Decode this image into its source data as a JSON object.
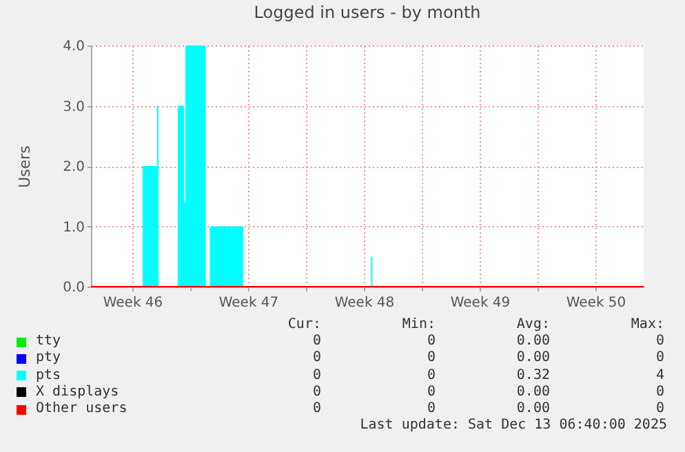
{
  "chart_data": {
    "type": "area",
    "title": "Logged in users - by month",
    "ylabel": "Users",
    "x": [
      "2025-11-11T00:00",
      "2025-11-14T03:00",
      "2025-11-15T00:00",
      "2025-11-15T02:00",
      "2025-11-16T06:00",
      "2025-11-16T15:00",
      "2025-11-16T17:00",
      "2025-11-17T22:30",
      "2025-11-18T04:30",
      "2025-11-20T05:00",
      "2025-11-27T22:30",
      "2025-11-28T00:30",
      "2025-12-14T10:00"
    ],
    "series": [
      {
        "name": "tty",
        "type": "line",
        "color": "#00ee00",
        "values": [
          null,
          null,
          null,
          null,
          null,
          null,
          null,
          null,
          null,
          null,
          null,
          null,
          null
        ]
      },
      {
        "name": "pty",
        "type": "line",
        "color": "#0000ff",
        "values": [
          null,
          null,
          null,
          null,
          null,
          null,
          null,
          null,
          null,
          null,
          null,
          null,
          null
        ]
      },
      {
        "name": "pts",
        "color": "#00ffff",
        "values": [
          0,
          2,
          3,
          0,
          3,
          1.4,
          4,
          0,
          1,
          0,
          0.5,
          0,
          0
        ]
      },
      {
        "name": "X displays",
        "type": "line",
        "color": "#000000",
        "values": [
          null,
          null,
          null,
          null,
          null,
          null,
          null,
          null,
          null,
          null,
          null,
          null,
          null
        ]
      },
      {
        "name": "Other users",
        "type": "line",
        "color": "#ff0000",
        "values": [
          0,
          0,
          0,
          0,
          0,
          0,
          0,
          0,
          0,
          0,
          0,
          0,
          0
        ]
      }
    ],
    "xlim": [
      "2025-11-11T00:00",
      "2025-12-14T10:00"
    ],
    "xticks": [
      {
        "value": "2025-11-13T12:00",
        "label": "Week 46"
      },
      {
        "value": "2025-11-17T00:00",
        "label": null
      },
      {
        "value": "2025-11-20T12:00",
        "label": "Week 47"
      },
      {
        "value": "2025-11-24T00:00",
        "label": null
      },
      {
        "value": "2025-11-27T12:00",
        "label": "Week 48"
      },
      {
        "value": "2025-12-01T00:00",
        "label": null
      },
      {
        "value": "2025-12-04T12:00",
        "label": "Week 49"
      },
      {
        "value": "2025-12-08T00:00",
        "label": null
      },
      {
        "value": "2025-12-11T12:00",
        "label": "Week 50"
      }
    ],
    "ylim": [
      0,
      4
    ],
    "yticks": [
      {
        "value": 0,
        "label": "0.0"
      },
      {
        "value": 1,
        "label": "1.0"
      },
      {
        "value": 2,
        "label": "2.0"
      },
      {
        "value": 3,
        "label": "3.0"
      },
      {
        "value": 4,
        "label": "4.0"
      }
    ],
    "grid": true,
    "legend": "bottom",
    "annotations": [
      "Cur:",
      "Min:",
      "Avg:",
      "Max:",
      "0",
      "0",
      "0.00",
      "0",
      "0",
      "0",
      "0.00",
      "0",
      "0",
      "0",
      "0.32",
      "4",
      "0",
      "0",
      "0.00",
      "0",
      "0",
      "0",
      "0.00",
      "0",
      "Last update: Sat Dec 13 06:40:00 2025"
    ]
  }
}
